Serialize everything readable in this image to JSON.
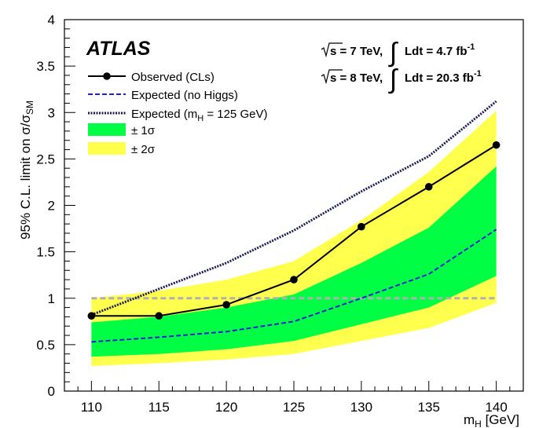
{
  "chart_data": {
    "type": "line",
    "experiment": "ATLAS",
    "xlabel": "m",
    "xlabel_sub": "H",
    "xlabel_unit": "[GeV]",
    "ylabel": "95% C.L. limit on σ/σ",
    "ylabel_sub": "SM",
    "xlim": [
      108,
      142
    ],
    "ylim": [
      0,
      4
    ],
    "x": [
      110,
      115,
      120,
      125,
      130,
      135,
      140
    ],
    "xticks": [
      "110",
      "115",
      "120",
      "125",
      "130",
      "135",
      "140"
    ],
    "yticks": [
      "0",
      "0.5",
      "1",
      "1.5",
      "2",
      "2.5",
      "3",
      "3.5",
      "4"
    ],
    "energy": [
      {
        "sqrts": "s = 7 TeV,",
        "lumi": "Ldt = 4.7 fb",
        "lumi_sup": "-1"
      },
      {
        "sqrts": "s = 8 TeV,",
        "lumi": "Ldt = 20.3 fb",
        "lumi_sup": "-1"
      }
    ],
    "series": [
      {
        "name": "Observed (CLs)",
        "values": [
          0.81,
          0.81,
          0.93,
          1.2,
          1.77,
          2.2,
          2.65
        ],
        "color": "#000000"
      },
      {
        "name": "Expected (no Higgs)",
        "values": [
          0.53,
          0.58,
          0.64,
          0.75,
          1.0,
          1.26,
          1.74
        ],
        "color": "#1f1fd6"
      },
      {
        "name": "Expected (m",
        "name_sub": "H",
        "name_tail": " = 125 GeV)",
        "values": [
          0.82,
          1.1,
          1.38,
          1.73,
          2.15,
          2.53,
          3.12
        ],
        "color": "#1a1a4e"
      }
    ],
    "bands": [
      {
        "name": "± 1σ",
        "color": "#00ff44",
        "low": [
          0.37,
          0.4,
          0.45,
          0.54,
          0.72,
          0.9,
          1.24
        ],
        "high": [
          0.74,
          0.8,
          0.9,
          1.04,
          1.38,
          1.76,
          2.42
        ]
      },
      {
        "name": "± 2σ",
        "color": "#ffff4d",
        "low": [
          0.27,
          0.3,
          0.34,
          0.4,
          0.54,
          0.68,
          0.95
        ],
        "high": [
          1.0,
          1.08,
          1.2,
          1.4,
          1.84,
          2.36,
          3.02
        ]
      }
    ],
    "reference_line": {
      "y": 1,
      "color": "#b0b0b0"
    },
    "legend": "top-left",
    "grid": false
  }
}
